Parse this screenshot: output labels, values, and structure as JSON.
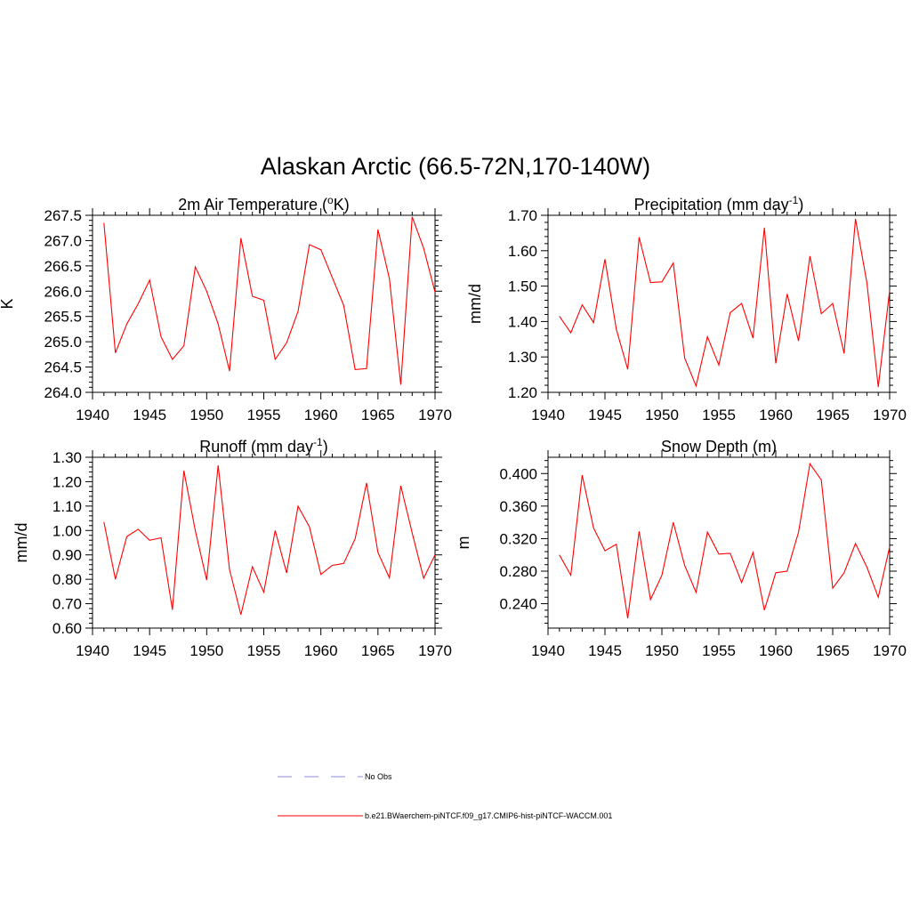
{
  "page_title": "Alaskan Arctic (66.5-72N,170-140W)",
  "colors": {
    "model_series": "#ff0000",
    "obs_series": "#a0a0e0"
  },
  "legend": {
    "obs_label": "No Obs",
    "model_label": "b.e21.BWaerchem-piNTCF.f09_g17.CMIP6-hist-piNTCF-WACCM.001"
  },
  "chart_data": [
    {
      "type": "line",
      "title": "2m Air Temperature (°K)",
      "title_main": "2m Air Temperature (",
      "title_sup": "o",
      "title_end": "K)",
      "ylabel": "K",
      "xlim": [
        1940,
        1970
      ],
      "ylim": [
        264.0,
        267.5
      ],
      "xticks": [
        "1940",
        "1945",
        "1950",
        "1955",
        "1960",
        "1965",
        "1970"
      ],
      "yticks": [
        "264.0",
        "264.5",
        "265.0",
        "265.5",
        "266.0",
        "266.5",
        "267.0",
        "267.5"
      ],
      "series": [
        {
          "x": [
            1941,
            1942,
            1943,
            1944,
            1945,
            1946,
            1947,
            1948,
            1949,
            1950,
            1951,
            1952,
            1953,
            1954,
            1955,
            1956,
            1957,
            1958,
            1959,
            1960,
            1961,
            1962,
            1963,
            1964,
            1965,
            1966,
            1967,
            1968,
            1969,
            1970
          ],
          "values": [
            267.35,
            264.78,
            265.35,
            265.75,
            266.22,
            265.1,
            264.65,
            264.92,
            266.48,
            266.0,
            265.35,
            264.42,
            267.05,
            265.9,
            265.82,
            264.65,
            264.98,
            265.6,
            266.92,
            266.82,
            266.27,
            265.72,
            264.45,
            264.47,
            267.22,
            266.25,
            264.15,
            267.47,
            266.85,
            265.98
          ]
        }
      ]
    },
    {
      "type": "line",
      "title": "Precipitation (mm day-1)",
      "title_main": "Precipitation (mm day",
      "title_sup": "-1",
      "title_end": ")",
      "ylabel": "mm/d",
      "xlim": [
        1940,
        1970
      ],
      "ylim": [
        1.2,
        1.7
      ],
      "xticks": [
        "1940",
        "1945",
        "1950",
        "1955",
        "1960",
        "1965",
        "1970"
      ],
      "yticks": [
        "1.20",
        "1.30",
        "1.40",
        "1.50",
        "1.60",
        "1.70"
      ],
      "series": [
        {
          "x": [
            1941,
            1942,
            1943,
            1944,
            1945,
            1946,
            1947,
            1948,
            1949,
            1950,
            1951,
            1952,
            1953,
            1954,
            1955,
            1956,
            1957,
            1958,
            1959,
            1960,
            1961,
            1962,
            1963,
            1964,
            1965,
            1966,
            1967,
            1968,
            1969,
            1970
          ],
          "values": [
            1.415,
            1.368,
            1.447,
            1.397,
            1.576,
            1.378,
            1.265,
            1.638,
            1.51,
            1.512,
            1.565,
            1.297,
            1.218,
            1.357,
            1.277,
            1.425,
            1.451,
            1.353,
            1.665,
            1.282,
            1.478,
            1.345,
            1.585,
            1.422,
            1.451,
            1.31,
            1.69,
            1.51,
            1.215,
            1.488
          ]
        }
      ]
    },
    {
      "type": "line",
      "title": "Runoff (mm day-1)",
      "title_main": "Runoff (mm day",
      "title_sup": "-1",
      "title_end": ")",
      "ylabel": "mm/d",
      "xlim": [
        1940,
        1970
      ],
      "ylim": [
        0.6,
        1.3
      ],
      "xticks": [
        "1940",
        "1945",
        "1950",
        "1955",
        "1960",
        "1965",
        "1970"
      ],
      "yticks": [
        "0.60",
        "0.70",
        "0.80",
        "0.90",
        "1.00",
        "1.10",
        "1.20",
        "1.30"
      ],
      "series": [
        {
          "x": [
            1941,
            1942,
            1943,
            1944,
            1945,
            1946,
            1947,
            1948,
            1949,
            1950,
            1951,
            1952,
            1953,
            1954,
            1955,
            1956,
            1957,
            1958,
            1959,
            1960,
            1961,
            1962,
            1963,
            1964,
            1965,
            1966,
            1967,
            1968,
            1969,
            1970
          ],
          "values": [
            1.035,
            0.8,
            0.975,
            1.005,
            0.96,
            0.97,
            0.675,
            1.245,
            1.0,
            0.797,
            1.267,
            0.84,
            0.655,
            0.852,
            0.747,
            1.0,
            0.826,
            1.1,
            1.015,
            0.82,
            0.857,
            0.865,
            0.966,
            1.195,
            0.91,
            0.806,
            1.183,
            0.99,
            0.804,
            0.9
          ]
        }
      ]
    },
    {
      "type": "line",
      "title": "Snow Depth (m)",
      "title_main": "Snow Depth (m)",
      "title_sup": "",
      "title_end": "",
      "ylabel": "m",
      "xlim": [
        1940,
        1970
      ],
      "ylim": [
        0.21,
        0.42
      ],
      "xticks": [
        "1940",
        "1945",
        "1950",
        "1955",
        "1960",
        "1965",
        "1970"
      ],
      "yticks": [
        "0.240",
        "0.280",
        "0.320",
        "0.360",
        "0.400"
      ],
      "series": [
        {
          "x": [
            1941,
            1942,
            1943,
            1944,
            1945,
            1946,
            1947,
            1948,
            1949,
            1950,
            1951,
            1952,
            1953,
            1954,
            1955,
            1956,
            1957,
            1958,
            1959,
            1960,
            1961,
            1962,
            1963,
            1964,
            1965,
            1966,
            1967,
            1968,
            1969,
            1970
          ],
          "values": [
            0.3,
            0.275,
            0.398,
            0.333,
            0.305,
            0.313,
            0.222,
            0.329,
            0.245,
            0.275,
            0.34,
            0.287,
            0.254,
            0.328,
            0.301,
            0.302,
            0.266,
            0.303,
            0.232,
            0.278,
            0.28,
            0.328,
            0.412,
            0.392,
            0.259,
            0.278,
            0.314,
            0.285,
            0.248,
            0.31
          ]
        }
      ]
    }
  ]
}
